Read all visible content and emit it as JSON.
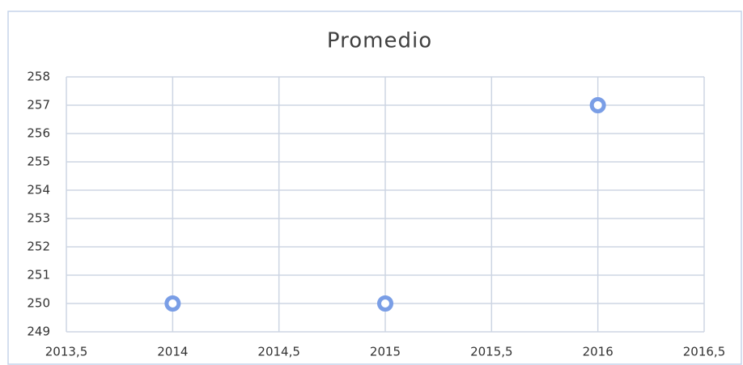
{
  "chart_data": {
    "type": "scatter",
    "title": "Promedio",
    "series": [
      {
        "color": "#7a9ee6",
        "x": [
          2014,
          2015,
          2016
        ],
        "values": [
          250,
          250,
          257
        ]
      }
    ],
    "xlim": [
      2013.5,
      2016.5
    ],
    "xticks": [
      {
        "value": 2013.5,
        "label": "2013,5"
      },
      2014,
      {
        "value": 2014.5,
        "label": "2014,5"
      },
      2015,
      {
        "value": 2015.5,
        "label": "2015,5"
      },
      2016,
      {
        "value": 2016.5,
        "label": "2016,5"
      }
    ],
    "ylim": [
      249,
      258
    ],
    "yticks": [
      249,
      250,
      251,
      252,
      253,
      254,
      255,
      256,
      257,
      258
    ],
    "grid": true
  }
}
